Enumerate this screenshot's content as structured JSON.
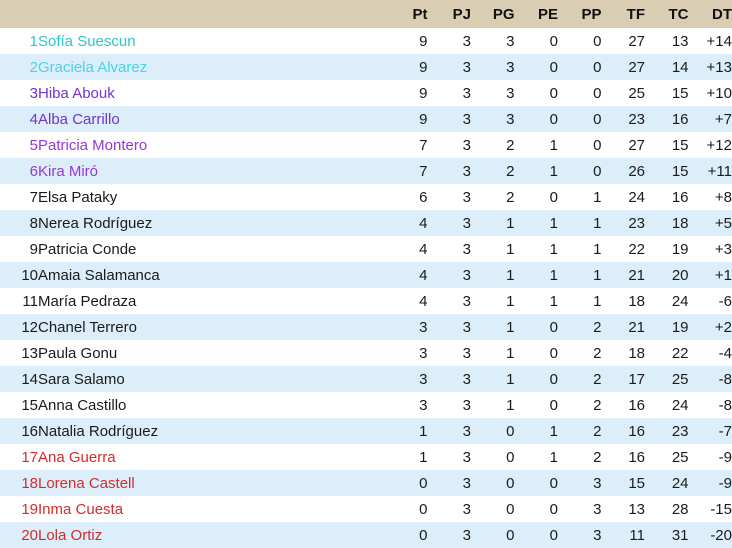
{
  "table_title": "classification-standings",
  "columns": [
    "Pt",
    "PJ",
    "PG",
    "PE",
    "PP",
    "TF",
    "TC",
    "DT"
  ],
  "colors": {
    "header_bg": "#d9cdb4",
    "row_bg": "#ffffff",
    "row_alt_bg": "#dceef9",
    "tier_champion": "#2fc6c6",
    "tier_qualify2": "#49d5e5",
    "tier_purple1": "#7433cf",
    "tier_purple2": "#9a36d4",
    "tier_mid": "#1b1b1b",
    "tier_relegation": "#d62b2b"
  },
  "rows": [
    {
      "rank": "1",
      "name": "Sofía Suescun",
      "tier": "champion",
      "pt": "9",
      "pj": "3",
      "pg": "3",
      "pe": "0",
      "pp": "0",
      "tf": "27",
      "tc": "13",
      "dt": "+14"
    },
    {
      "rank": "2",
      "name": "Graciela Alvarez",
      "tier": "qualify2",
      "pt": "9",
      "pj": "3",
      "pg": "3",
      "pe": "0",
      "pp": "0",
      "tf": "27",
      "tc": "14",
      "dt": "+13"
    },
    {
      "rank": "3",
      "name": "Hiba Abouk",
      "tier": "purple1",
      "pt": "9",
      "pj": "3",
      "pg": "3",
      "pe": "0",
      "pp": "0",
      "tf": "25",
      "tc": "15",
      "dt": "+10"
    },
    {
      "rank": "4",
      "name": "Alba Carrillo",
      "tier": "purple1",
      "pt": "9",
      "pj": "3",
      "pg": "3",
      "pe": "0",
      "pp": "0",
      "tf": "23",
      "tc": "16",
      "dt": "+7"
    },
    {
      "rank": "5",
      "name": "Patricia Montero",
      "tier": "purple2",
      "pt": "7",
      "pj": "3",
      "pg": "2",
      "pe": "1",
      "pp": "0",
      "tf": "27",
      "tc": "15",
      "dt": "+12"
    },
    {
      "rank": "6",
      "name": "Kira Miró",
      "tier": "purple2",
      "pt": "7",
      "pj": "3",
      "pg": "2",
      "pe": "1",
      "pp": "0",
      "tf": "26",
      "tc": "15",
      "dt": "+11"
    },
    {
      "rank": "7",
      "name": "Elsa Pataky",
      "tier": "mid",
      "pt": "6",
      "pj": "3",
      "pg": "2",
      "pe": "0",
      "pp": "1",
      "tf": "24",
      "tc": "16",
      "dt": "+8"
    },
    {
      "rank": "8",
      "name": "Nerea Rodríguez",
      "tier": "mid",
      "pt": "4",
      "pj": "3",
      "pg": "1",
      "pe": "1",
      "pp": "1",
      "tf": "23",
      "tc": "18",
      "dt": "+5"
    },
    {
      "rank": "9",
      "name": "Patricia Conde",
      "tier": "mid",
      "pt": "4",
      "pj": "3",
      "pg": "1",
      "pe": "1",
      "pp": "1",
      "tf": "22",
      "tc": "19",
      "dt": "+3"
    },
    {
      "rank": "10",
      "name": "Amaia Salamanca",
      "tier": "mid",
      "pt": "4",
      "pj": "3",
      "pg": "1",
      "pe": "1",
      "pp": "1",
      "tf": "21",
      "tc": "20",
      "dt": "+1"
    },
    {
      "rank": "11",
      "name": "María Pedraza",
      "tier": "mid",
      "pt": "4",
      "pj": "3",
      "pg": "1",
      "pe": "1",
      "pp": "1",
      "tf": "18",
      "tc": "24",
      "dt": "-6"
    },
    {
      "rank": "12",
      "name": "Chanel Terrero",
      "tier": "mid",
      "pt": "3",
      "pj": "3",
      "pg": "1",
      "pe": "0",
      "pp": "2",
      "tf": "21",
      "tc": "19",
      "dt": "+2"
    },
    {
      "rank": "13",
      "name": "Paula Gonu",
      "tier": "mid",
      "pt": "3",
      "pj": "3",
      "pg": "1",
      "pe": "0",
      "pp": "2",
      "tf": "18",
      "tc": "22",
      "dt": "-4"
    },
    {
      "rank": "14",
      "name": "Sara Salamo",
      "tier": "mid",
      "pt": "3",
      "pj": "3",
      "pg": "1",
      "pe": "0",
      "pp": "2",
      "tf": "17",
      "tc": "25",
      "dt": "-8"
    },
    {
      "rank": "15",
      "name": "Anna Castillo",
      "tier": "mid",
      "pt": "3",
      "pj": "3",
      "pg": "1",
      "pe": "0",
      "pp": "2",
      "tf": "16",
      "tc": "24",
      "dt": "-8"
    },
    {
      "rank": "16",
      "name": "Natalia Rodríguez",
      "tier": "mid",
      "pt": "1",
      "pj": "3",
      "pg": "0",
      "pe": "1",
      "pp": "2",
      "tf": "16",
      "tc": "23",
      "dt": "-7"
    },
    {
      "rank": "17",
      "name": "Ana Guerra",
      "tier": "relegation",
      "pt": "1",
      "pj": "3",
      "pg": "0",
      "pe": "1",
      "pp": "2",
      "tf": "16",
      "tc": "25",
      "dt": "-9"
    },
    {
      "rank": "18",
      "name": "Lorena Castell",
      "tier": "relegation",
      "pt": "0",
      "pj": "3",
      "pg": "0",
      "pe": "0",
      "pp": "3",
      "tf": "15",
      "tc": "24",
      "dt": "-9"
    },
    {
      "rank": "19",
      "name": "Inma Cuesta",
      "tier": "relegation",
      "pt": "0",
      "pj": "3",
      "pg": "0",
      "pe": "0",
      "pp": "3",
      "tf": "13",
      "tc": "28",
      "dt": "-15"
    },
    {
      "rank": "20",
      "name": "Lola Ortiz",
      "tier": "relegation",
      "pt": "0",
      "pj": "3",
      "pg": "0",
      "pe": "0",
      "pp": "3",
      "tf": "11",
      "tc": "31",
      "dt": "-20"
    }
  ]
}
